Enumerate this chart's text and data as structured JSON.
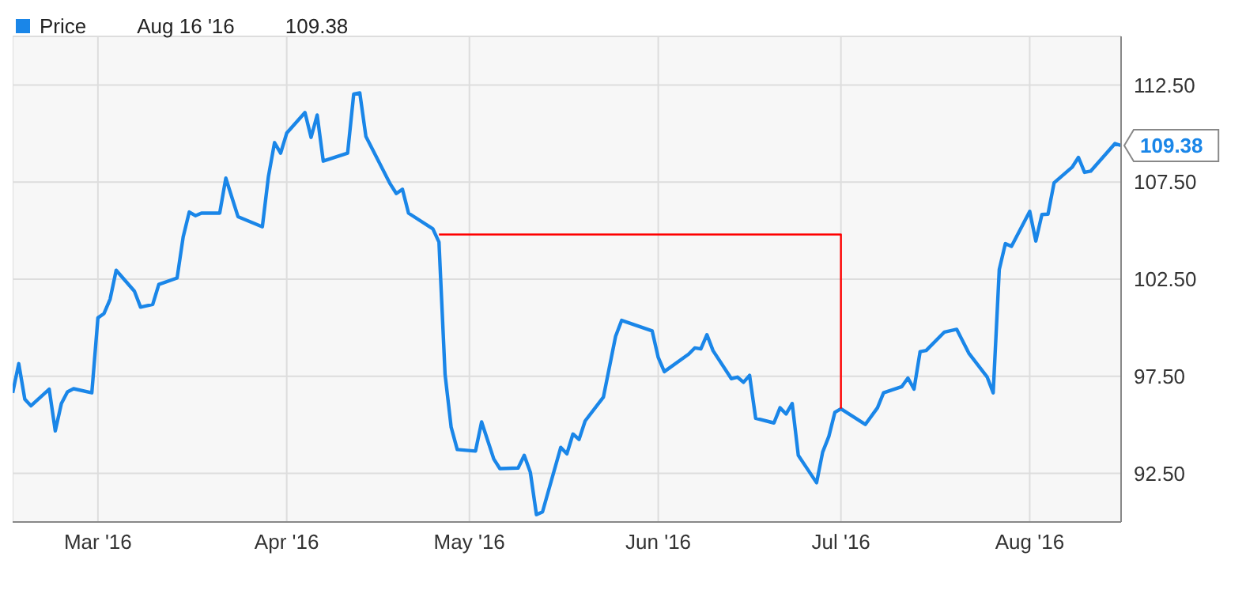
{
  "chart_data": {
    "type": "line",
    "legend": "top left",
    "grid": true,
    "marker": "none",
    "line_style": "solid",
    "annotations": [
      "Aug 16 '16",
      "109.38",
      {
        "text": "109.38",
        "x": "2016-08-16",
        "y": 109.38
      }
    ],
    "xlim": [
      "2016-02-16",
      "2016-08-16"
    ],
    "xticks": [
      {
        "value": "2016-03-01",
        "label": "Mar '16"
      },
      {
        "value": "2016-04-01",
        "label": "Apr '16"
      },
      {
        "value": "2016-05-01",
        "label": "May '16"
      },
      {
        "value": "2016-06-01",
        "label": "Jun '16"
      },
      {
        "value": "2016-07-01",
        "label": "Jul '16"
      },
      {
        "value": "2016-08-01",
        "label": "Aug '16"
      }
    ],
    "ylim": [
      90,
      115
    ],
    "yticks": [
      {
        "value": 92.5,
        "label": "92.50"
      },
      {
        "value": 97.5,
        "label": "97.50"
      },
      {
        "value": 102.5,
        "label": "102.50"
      },
      {
        "value": 107.5,
        "label": "107.50"
      },
      {
        "value": 112.5,
        "label": "112.50"
      }
    ],
    "series": [
      {
        "name": "Price",
        "color": "#1a86e8",
        "x": [
          "2016-02-16",
          "2016-02-17",
          "2016-02-18",
          "2016-02-19",
          "2016-02-22",
          "2016-02-23",
          "2016-02-24",
          "2016-02-25",
          "2016-02-26",
          "2016-02-29",
          "2016-03-01",
          "2016-03-02",
          "2016-03-03",
          "2016-03-04",
          "2016-03-07",
          "2016-03-08",
          "2016-03-10",
          "2016-03-11",
          "2016-03-14",
          "2016-03-15",
          "2016-03-16",
          "2016-03-17",
          "2016-03-18",
          "2016-03-21",
          "2016-03-22",
          "2016-03-24",
          "2016-03-28",
          "2016-03-29",
          "2016-03-30",
          "2016-03-31",
          "2016-04-01",
          "2016-04-04",
          "2016-04-05",
          "2016-04-06",
          "2016-04-07",
          "2016-04-11",
          "2016-04-12",
          "2016-04-13",
          "2016-04-14",
          "2016-04-18",
          "2016-04-19",
          "2016-04-20",
          "2016-04-21",
          "2016-04-25",
          "2016-04-26",
          "2016-04-27",
          "2016-04-28",
          "2016-04-29",
          "2016-05-02",
          "2016-05-03",
          "2016-05-05",
          "2016-05-06",
          "2016-05-09",
          "2016-05-10",
          "2016-05-11",
          "2016-05-12",
          "2016-05-13",
          "2016-05-16",
          "2016-05-17",
          "2016-05-18",
          "2016-05-19",
          "2016-05-20",
          "2016-05-23",
          "2016-05-25",
          "2016-05-26",
          "2016-05-31",
          "2016-06-01",
          "2016-06-02",
          "2016-06-06",
          "2016-06-07",
          "2016-06-08",
          "2016-06-09",
          "2016-06-10",
          "2016-06-13",
          "2016-06-14",
          "2016-06-15",
          "2016-06-16",
          "2016-06-17",
          "2016-06-20",
          "2016-06-21",
          "2016-06-22",
          "2016-06-23",
          "2016-06-24",
          "2016-06-27",
          "2016-06-28",
          "2016-06-29",
          "2016-06-30",
          "2016-07-01",
          "2016-07-05",
          "2016-07-07",
          "2016-07-08",
          "2016-07-11",
          "2016-07-12",
          "2016-07-13",
          "2016-07-14",
          "2016-07-15",
          "2016-07-18",
          "2016-07-20",
          "2016-07-22",
          "2016-07-25",
          "2016-07-26",
          "2016-07-27",
          "2016-07-28",
          "2016-07-29",
          "2016-08-01",
          "2016-08-02",
          "2016-08-03",
          "2016-08-04",
          "2016-08-05",
          "2016-08-08",
          "2016-08-09",
          "2016-08-10",
          "2016-08-11",
          "2016-08-15",
          "2016-08-16"
        ],
        "values": [
          96.65,
          98.15,
          96.32,
          95.98,
          96.84,
          94.69,
          96.1,
          96.7,
          96.86,
          96.65,
          100.51,
          100.73,
          101.47,
          102.96,
          101.88,
          101.06,
          101.2,
          102.23,
          102.56,
          104.68,
          105.96,
          105.77,
          105.9,
          105.9,
          107.7,
          105.72,
          105.2,
          107.79,
          109.53,
          108.99,
          110.02,
          111.08,
          109.8,
          110.95,
          108.58,
          108.99,
          112.03,
          112.09,
          109.85,
          107.4,
          106.91,
          107.13,
          105.9,
          105.09,
          104.41,
          97.6,
          94.88,
          93.73,
          93.65,
          95.15,
          93.24,
          92.75,
          92.78,
          93.43,
          92.56,
          90.38,
          90.52,
          93.84,
          93.51,
          94.53,
          94.25,
          95.2,
          96.43,
          99.56,
          100.38,
          99.84,
          98.47,
          97.74,
          98.64,
          98.96,
          98.91,
          99.64,
          98.82,
          97.38,
          97.46,
          97.19,
          97.55,
          95.34,
          95.1,
          95.88,
          95.56,
          96.1,
          93.43,
          92.02,
          93.6,
          94.39,
          95.64,
          95.83,
          95.02,
          95.88,
          96.65,
          96.97,
          97.41,
          96.84,
          98.77,
          98.83,
          99.78,
          99.92,
          98.69,
          97.47,
          96.65,
          103.0,
          104.33,
          104.19,
          105.99,
          104.46,
          105.83,
          105.85,
          107.46,
          108.28,
          108.77,
          108.0,
          108.06,
          109.48,
          109.38
        ]
      },
      {
        "type": "line",
        "color": "#ff0000",
        "x": [
          "2016-04-26",
          "2016-07-01",
          "2016-07-01"
        ],
        "values": [
          104.8,
          104.8,
          95.83
        ]
      }
    ]
  }
}
